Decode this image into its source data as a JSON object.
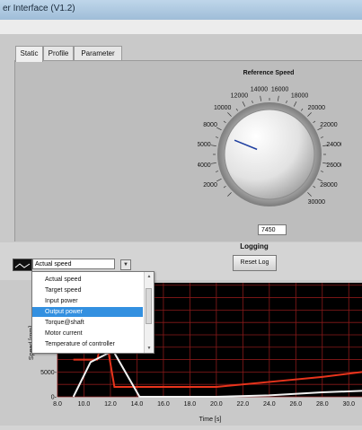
{
  "window": {
    "title": "er Interface (V1.2)"
  },
  "tabs": [
    {
      "label": "Static",
      "active": true
    },
    {
      "label": "Profile",
      "active": false
    },
    {
      "label": "Parameter",
      "active": false
    }
  ],
  "reference_speed": {
    "title": "Reference Speed",
    "value": "7450",
    "dial_min": 0,
    "dial_max": 30000,
    "dial_labels": [
      "2000",
      "4000",
      "6000",
      "8000",
      "10000",
      "12000",
      "14000",
      "16000",
      "18000",
      "20000",
      "22000",
      "24000",
      "26000",
      "28000",
      "30000"
    ]
  },
  "logging": {
    "title": "Logging",
    "reset_label": "Reset Log"
  },
  "plot_selector": {
    "selected": "Actual speed",
    "options": [
      "Actual speed",
      "Target speed",
      "Input power",
      "Output power",
      "Torque@shaft",
      "Motor current",
      "Temperature of controller"
    ],
    "highlighted": "Output power"
  },
  "chart_data": {
    "type": "line",
    "xlabel": "Time [s]",
    "ylabel": "Speed [rpm]",
    "xlim": [
      8.0,
      31.0
    ],
    "ylim": [
      0,
      23000
    ],
    "x_ticks": [
      "8.0",
      "10.0",
      "12.0",
      "14.0",
      "16.0",
      "18.0",
      "20.0",
      "22.0",
      "24.0",
      "26.0",
      "28.0",
      "30.0"
    ],
    "y_ticks": [
      "0-",
      "5000-",
      "10000-"
    ],
    "grid": true,
    "colors": {
      "background": "#000000",
      "grid": "#8a1a1a",
      "red_series": "#e8341c",
      "white_series": "#f2f2f2"
    },
    "series": [
      {
        "color": "#e8341c",
        "points": [
          [
            9.2,
            7500
          ],
          [
            11.0,
            7500
          ],
          [
            11.2,
            9800
          ],
          [
            11.8,
            9800
          ],
          [
            12.3,
            2000
          ],
          [
            14.0,
            2000
          ],
          [
            20.0,
            2000
          ],
          [
            24.0,
            3000
          ],
          [
            28.0,
            4000
          ],
          [
            31.0,
            5000
          ]
        ]
      },
      {
        "color": "#f2f2f2",
        "points": [
          [
            9.2,
            0
          ],
          [
            10.5,
            7000
          ],
          [
            12.2,
            9300
          ],
          [
            14.2,
            0
          ],
          [
            20.0,
            0
          ],
          [
            24.0,
            300
          ],
          [
            28.0,
            900
          ],
          [
            31.0,
            1200
          ]
        ]
      }
    ]
  }
}
